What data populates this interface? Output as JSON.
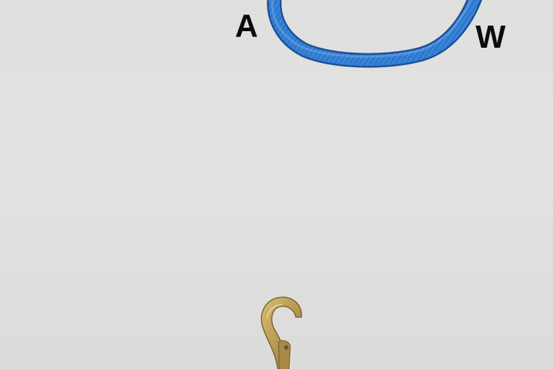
{
  "labels": {
    "a": "A",
    "w": "W"
  },
  "objects": {
    "rope": {
      "name": "blue-rope",
      "color": "#2f7ad0"
    },
    "hook": {
      "name": "brass-snap-hook",
      "color": "#b89a52"
    }
  },
  "colors": {
    "background": "#dedede",
    "label": "#0c0c0c"
  }
}
